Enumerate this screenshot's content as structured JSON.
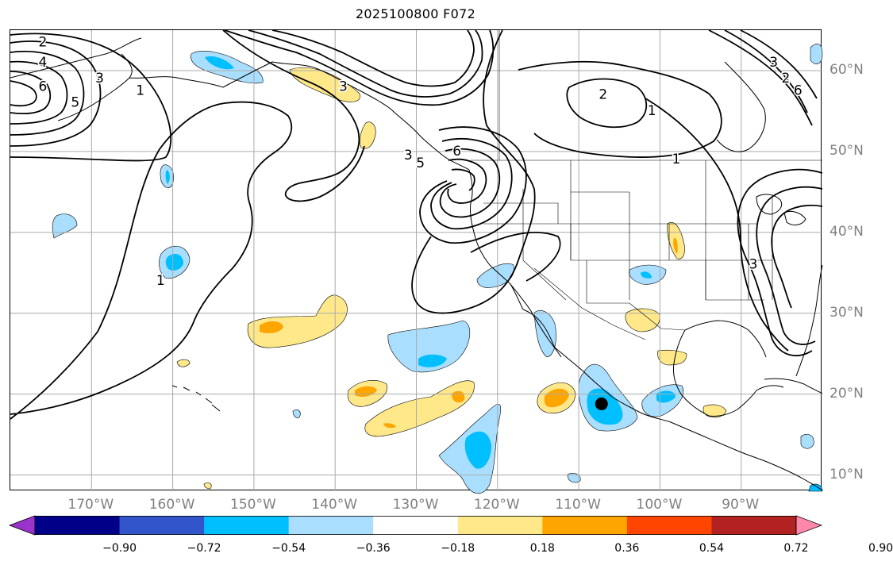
{
  "title": "2025100800 F072",
  "map": {
    "lat_labels": [
      {
        "text": "60°N",
        "lat": 60
      },
      {
        "text": "50°N",
        "lat": 50
      },
      {
        "text": "40°N",
        "lat": 40
      },
      {
        "text": "30°N",
        "lat": 30
      },
      {
        "text": "20°N",
        "lat": 20
      },
      {
        "text": "10°N",
        "lat": 10
      }
    ],
    "lon_labels": [
      {
        "text": "170°W",
        "lon": -170
      },
      {
        "text": "160°W",
        "lon": -160
      },
      {
        "text": "150°W",
        "lon": -150
      },
      {
        "text": "140°W",
        "lon": -140
      },
      {
        "text": "130°W",
        "lon": -130
      },
      {
        "text": "120°W",
        "lon": -120
      },
      {
        "text": "110°W",
        "lon": -110
      },
      {
        "text": "100°W",
        "lon": -100
      },
      {
        "text": "90°W",
        "lon": -90
      }
    ],
    "extent": {
      "lon_min": -180,
      "lon_max": -80,
      "lat_min": 8,
      "lat_max": 65
    },
    "contour_labels": [
      {
        "text": "2",
        "lon": -176,
        "lat": 63.5
      },
      {
        "text": "4",
        "lon": -176,
        "lat": 61
      },
      {
        "text": "6",
        "lon": -176,
        "lat": 58
      },
      {
        "text": "3",
        "lon": -169,
        "lat": 59
      },
      {
        "text": "1",
        "lon": -164,
        "lat": 57.5
      },
      {
        "text": "5",
        "lon": -172,
        "lat": 56
      },
      {
        "text": "3",
        "lon": -139,
        "lat": 58
      },
      {
        "text": "2",
        "lon": -107,
        "lat": 57
      },
      {
        "text": "1",
        "lon": -101,
        "lat": 55
      },
      {
        "text": "1",
        "lon": -98,
        "lat": 49
      },
      {
        "text": "3",
        "lon": -131,
        "lat": 49.5
      },
      {
        "text": "5",
        "lon": -129.5,
        "lat": 48.5
      },
      {
        "text": "6",
        "lon": -125,
        "lat": 50
      },
      {
        "text": "1",
        "lon": -161.5,
        "lat": 34
      },
      {
        "text": "3",
        "lon": -86,
        "lat": 61
      },
      {
        "text": "2",
        "lon": -84.5,
        "lat": 59
      },
      {
        "text": "6",
        "lon": -83,
        "lat": 57.5
      },
      {
        "text": "3",
        "lon": -88.5,
        "lat": 36
      }
    ],
    "marker": {
      "name": "point-marker",
      "lon": -107.2,
      "lat": 18.8
    }
  },
  "colorbar": {
    "colors": [
      "#9933cc",
      "#000088",
      "#3355cc",
      "#00bfff",
      "#aadeff",
      "#ffffff",
      "#ffe88a",
      "#ffa500",
      "#ff4500",
      "#b22222",
      "#ff88aa"
    ],
    "labels": [
      "−0.90",
      "−0.72",
      "−0.54",
      "−0.36",
      "−0.18",
      "0.18",
      "0.36",
      "0.54",
      "0.72",
      "0.90"
    ],
    "boundaries": [
      -0.9,
      -0.72,
      -0.54,
      -0.36,
      -0.18,
      0.18,
      0.36,
      0.54,
      0.72,
      0.9
    ]
  }
}
